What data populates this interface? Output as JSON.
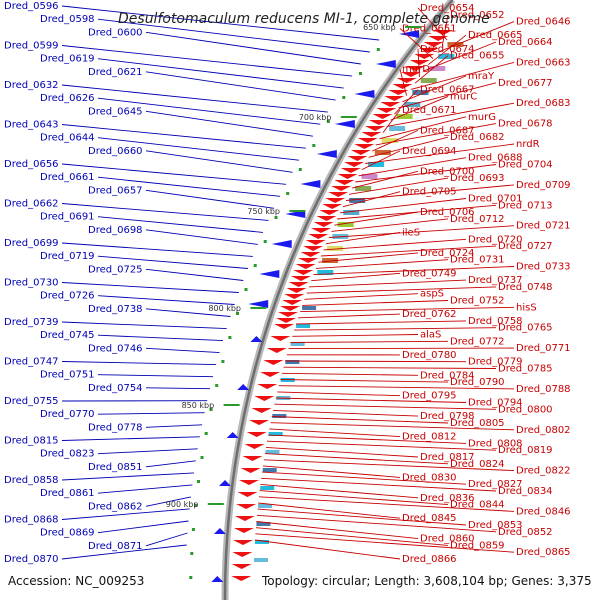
{
  "title": "Desulfotomaculum reducens MI-1, complete genome",
  "accession": "Accession: NC_009253",
  "topology": "Topology: circular; Length: 3,608,104 bp; Genes: 3,375",
  "colors": {
    "left_label": "#0000b4",
    "right_label": "#c80000",
    "forward": "#1a1aee",
    "reverse": "#ee1111",
    "backbone": "#888888"
  },
  "kbp_markers": [
    "650 kbp",
    "700 kbp",
    "750 kbp",
    "800 kbp",
    "850 kbp",
    "900 kbp"
  ],
  "left_genes": [
    "Dred_0596",
    "Dred_0598",
    "Dred_0600",
    "Dred_0599",
    "Dred_0619",
    "Dred_0621",
    "Dred_0632",
    "Dred_0626",
    "Dred_0645",
    "Dred_0643",
    "Dred_0644",
    "Dred_0660",
    "Dred_0656",
    "Dred_0661",
    "Dred_0657",
    "Dred_0662",
    "Dred_0691",
    "Dred_0698",
    "Dred_0699",
    "Dred_0719",
    "Dred_0725",
    "Dred_0730",
    "Dred_0726",
    "Dred_0738",
    "Dred_0739",
    "Dred_0745",
    "Dred_0746",
    "Dred_0747",
    "Dred_0751",
    "Dred_0754",
    "Dred_0755",
    "Dred_0770",
    "Dred_0778",
    "Dred_0815",
    "Dred_0823",
    "Dred_0851",
    "Dred_0858",
    "Dred_0861",
    "Dred_0862",
    "Dred_0868",
    "Dred_0869",
    "Dred_0871",
    "Dred_0870"
  ],
  "right_genes": [
    "Dred_0654",
    "Dred_0652",
    "Dred_0646",
    "Dred_0651",
    "Dred_0665",
    "Dred_0664",
    "Dred_0674",
    "Dred_0655",
    "Dred_0663",
    "murD",
    "mraY",
    "Dred_0677",
    "Dred_0667",
    "murC",
    "Dred_0683",
    "Dred_0671",
    "murG",
    "Dred_0678",
    "Dred_0687",
    "Dred_0682",
    "nrdR",
    "Dred_0694",
    "Dred_0688",
    "Dred_0704",
    "Dred_0700",
    "Dred_0693",
    "Dred_0709",
    "Dred_0705",
    "Dred_0701",
    "Dred_0713",
    "Dred_0706",
    "Dred_0712",
    "Dred_0721",
    "ileS",
    "Dred_0720",
    "Dred_0727",
    "Dred_0724",
    "Dred_0731",
    "Dred_0733",
    "Dred_0749",
    "Dred_0737",
    "Dred_0748",
    "aspS",
    "Dred_0752",
    "hisS",
    "Dred_0762",
    "Dred_0758",
    "Dred_0765",
    "alaS",
    "Dred_0772",
    "Dred_0771",
    "Dred_0780",
    "Dred_0779",
    "Dred_0785",
    "Dred_0784",
    "Dred_0790",
    "Dred_0788",
    "Dred_0795",
    "Dred_0794",
    "Dred_0800",
    "Dred_0798",
    "Dred_0805",
    "Dred_0802",
    "Dred_0812",
    "Dred_0808",
    "Dred_0819",
    "Dred_0817",
    "Dred_0824",
    "Dred_0822",
    "Dred_0830",
    "Dred_0827",
    "Dred_0834",
    "Dred_0836",
    "Dred_0844",
    "Dred_0846",
    "Dred_0845",
    "Dred_0853",
    "Dred_0852",
    "Dred_0860",
    "Dred_0859",
    "Dred_0865",
    "Dred_0866"
  ]
}
